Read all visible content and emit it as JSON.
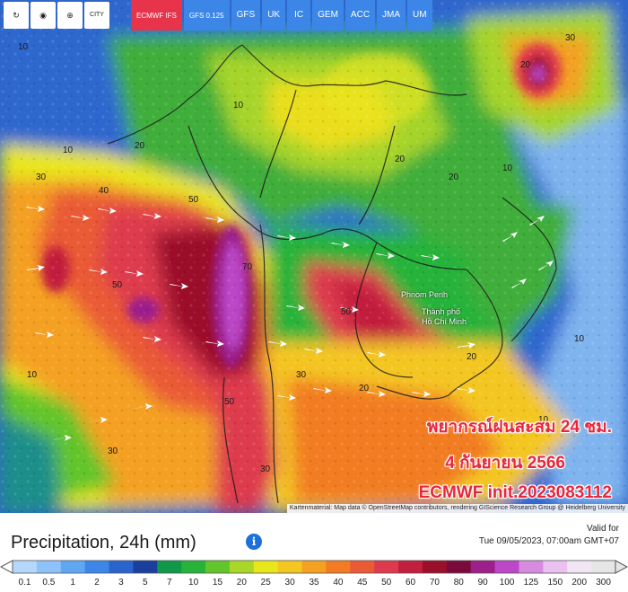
{
  "toolbar": {
    "tools": [
      {
        "name": "refresh-icon",
        "glyph": "↻"
      },
      {
        "name": "location-pin-icon",
        "glyph": "◉"
      },
      {
        "name": "zoom-icon",
        "glyph": "⊕"
      },
      {
        "name": "city-toggle",
        "text": "CITY"
      }
    ],
    "models": [
      {
        "label": "ECMWF IFS",
        "active": true
      },
      {
        "label": "GFS 0.125"
      },
      {
        "label": "GFS"
      },
      {
        "label": "UK"
      },
      {
        "label": "IC"
      },
      {
        "label": "GEM"
      },
      {
        "label": "ACC"
      },
      {
        "label": "JMA"
      },
      {
        "label": "UM"
      }
    ]
  },
  "map": {
    "cities": [
      "Phnom Penh",
      "Thành phố",
      "Hồ Chí Minh"
    ],
    "overlay": {
      "line1": "พยากรณ์ฝนสะสม 24 ชม.",
      "line2": "4 กันยายน 2566",
      "line3": "ECMWF init.2023083112"
    },
    "attribution": "Kartenmaterial: Map data © OpenStreetMap contributors, rendering GIScience Research Group @ Heidelberg University"
  },
  "legend": {
    "title": "Precipitation, 24h (mm)",
    "info_icon": "i",
    "valid_label": "Valid for",
    "valid_time": "Tue 09/05/2023, 07:00am GMT+07",
    "scale_values": [
      "0.1",
      "0.5",
      "1",
      "2",
      "3",
      "5",
      "7",
      "10",
      "15",
      "20",
      "25",
      "30",
      "35",
      "40",
      "45",
      "50",
      "60",
      "70",
      "80",
      "90",
      "100",
      "125",
      "150",
      "200",
      "300"
    ],
    "scale_colors": [
      "#b4d7fb",
      "#8fc2f9",
      "#5fa7f2",
      "#3c86e8",
      "#2a63cc",
      "#1b3f9e",
      "#0f9a4a",
      "#27b33a",
      "#62c52b",
      "#a9d627",
      "#e9e61c",
      "#f4c620",
      "#f4a020",
      "#f27b24",
      "#ea5a36",
      "#de3a4e",
      "#c21e3e",
      "#9c0f2b",
      "#7b0a3c",
      "#9c1f8c",
      "#bc47c8",
      "#d78be0",
      "#ebc2ef",
      "#f3e6f4",
      "#e6e6e6"
    ],
    "scale_ends": {
      "left": "◁",
      "right": "▷"
    }
  }
}
